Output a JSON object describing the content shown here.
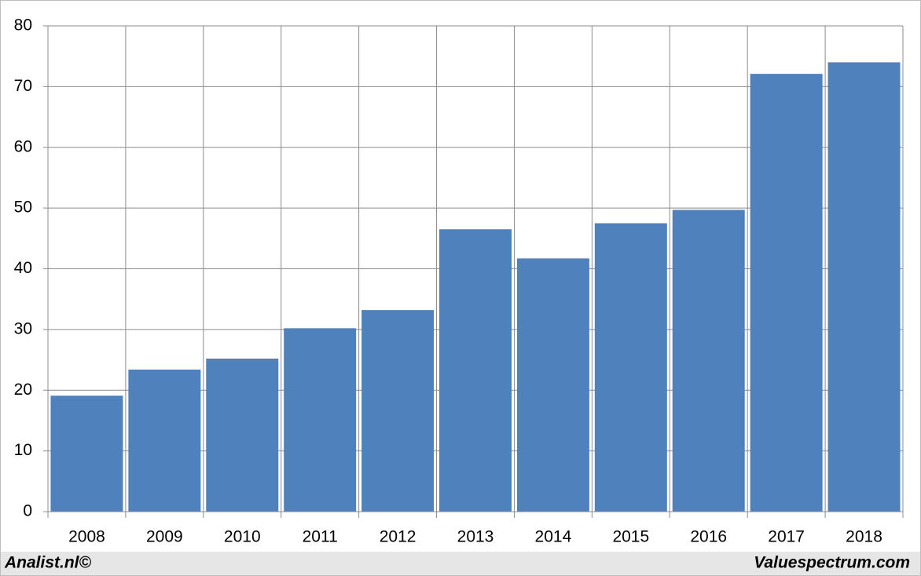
{
  "chart_data": {
    "type": "bar",
    "categories": [
      "2008",
      "2009",
      "2010",
      "2011",
      "2012",
      "2013",
      "2014",
      "2015",
      "2016",
      "2017",
      "2018"
    ],
    "values": [
      19.1,
      23.4,
      25.2,
      30.2,
      33.2,
      46.5,
      41.7,
      47.5,
      49.7,
      72.1,
      74.0
    ],
    "color": "#4f81bd",
    "ylim": [
      0,
      80
    ],
    "yticks": [
      0,
      10,
      20,
      30,
      40,
      50,
      60,
      70,
      80
    ],
    "grid": true
  },
  "footer": {
    "left": "Analist.nl©",
    "right": "Valuespectrum.com"
  }
}
